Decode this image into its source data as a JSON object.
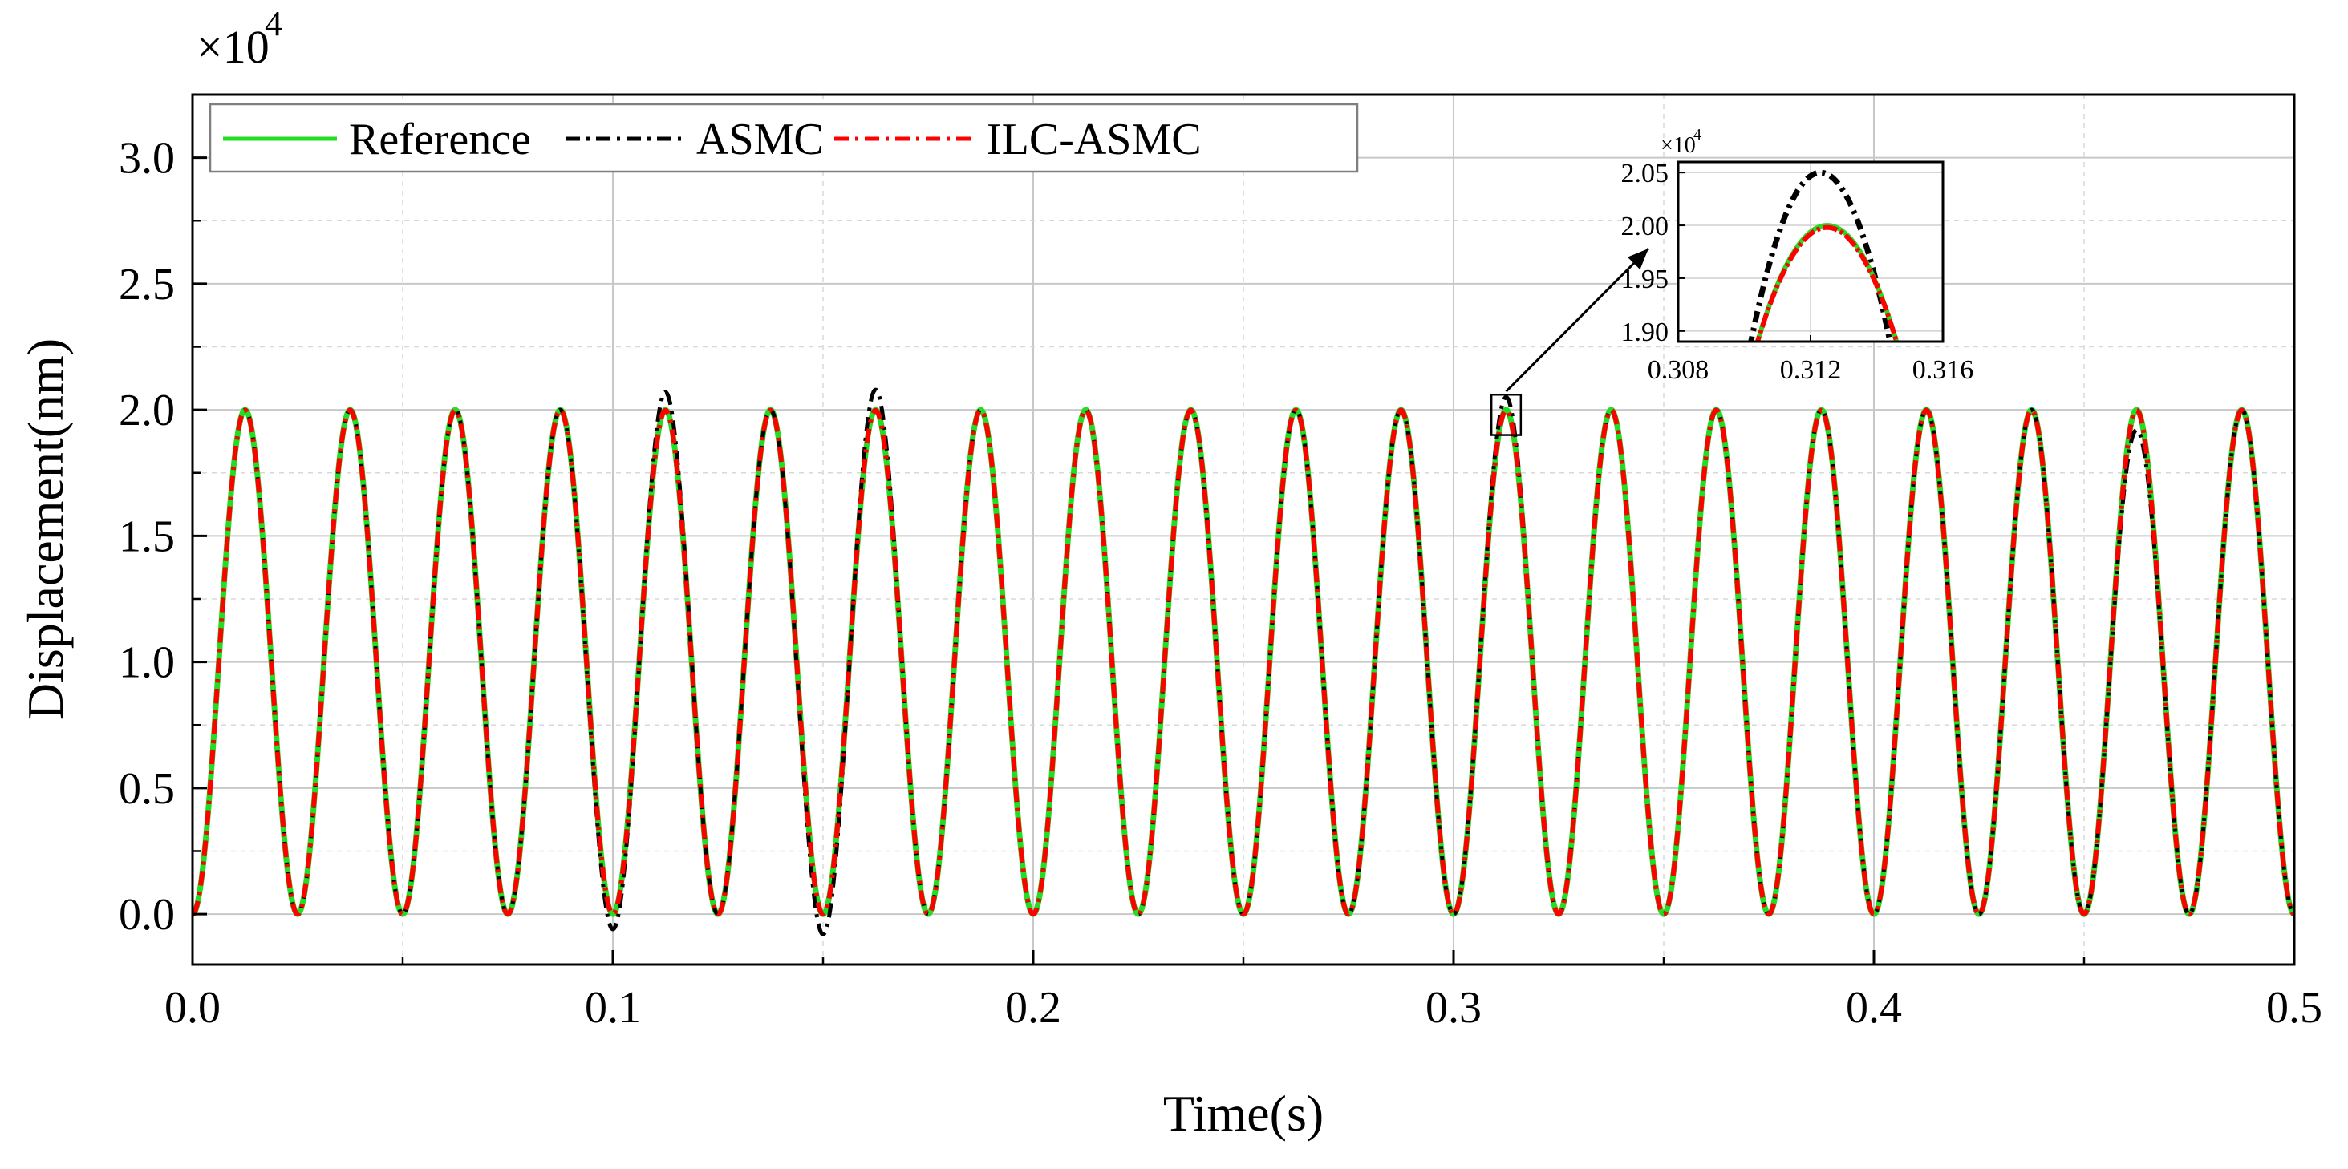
{
  "chart_data": [
    {
      "id": "main",
      "type": "line",
      "xlabel": "Time(s)",
      "ylabel": "Displacement(nm)",
      "xlim": [
        0.0,
        0.5
      ],
      "ylim": [
        -0.2,
        3.25
      ],
      "y_scale_label": "×10",
      "y_scale_exponent": "4",
      "x_ticks": [
        0.0,
        0.1,
        0.2,
        0.3,
        0.4,
        0.5
      ],
      "x_tick_labels": [
        "0.0",
        "0.1",
        "0.2",
        "0.3",
        "0.4",
        "0.5"
      ],
      "x_minor_ticks": [
        0.05,
        0.15,
        0.25,
        0.35,
        0.45
      ],
      "y_ticks": [
        0.0,
        0.5,
        1.0,
        1.5,
        2.0,
        2.5,
        3.0
      ],
      "y_tick_labels": [
        "0.0",
        "0.5",
        "1.0",
        "1.5",
        "2.0",
        "2.5",
        "3.0"
      ],
      "grid": true,
      "legend_position": "top-left",
      "signal": {
        "form": "A*(1 - cos(2*pi*f*t))/2",
        "amplitude": 2.0,
        "frequency_hz": 40,
        "period_s": 0.025,
        "peak": 2.0,
        "min": 0.0
      },
      "series": [
        {
          "name": "Reference",
          "color": "#22dd22",
          "style": "solid"
        },
        {
          "name": "ASMC",
          "color": "#000000",
          "style": "dash-dot"
        },
        {
          "name": "ILC-ASMC",
          "color": "#ff0000",
          "style": "dash-dot"
        }
      ],
      "asmc_deviations": [
        {
          "t": 0.1125,
          "peak": 2.07
        },
        {
          "t": 0.1625,
          "peak": 2.08
        },
        {
          "t": 0.3125,
          "peak": 2.05
        },
        {
          "t": 0.4625,
          "peak": 1.92
        },
        {
          "t": 0.1,
          "valley": -0.06
        },
        {
          "t": 0.15,
          "valley": -0.08
        }
      ],
      "zoom_box": {
        "t_start": 0.309,
        "t_end": 0.316,
        "y_min": 1.9,
        "y_max": 2.06
      }
    },
    {
      "id": "inset",
      "type": "line",
      "xlim": [
        0.308,
        0.316
      ],
      "ylim": [
        1.89,
        2.06
      ],
      "y_scale_label": "×10",
      "y_scale_exponent": "4",
      "x_ticks": [
        0.308,
        0.312,
        0.316
      ],
      "x_tick_labels": [
        "0.308",
        "0.312",
        "0.316"
      ],
      "y_ticks": [
        1.9,
        1.95,
        2.0,
        2.05
      ],
      "y_tick_labels": [
        "1.90",
        "1.95",
        "2.00",
        "2.05"
      ],
      "series": [
        {
          "name": "ASMC",
          "peak_t": 0.3123,
          "peak_value": 2.05
        },
        {
          "name": "Reference",
          "peak_t": 0.3125,
          "peak_value": 2.0
        },
        {
          "name": "ILC-ASMC",
          "peak_t": 0.3125,
          "peak_value": 1.998
        }
      ]
    }
  ]
}
